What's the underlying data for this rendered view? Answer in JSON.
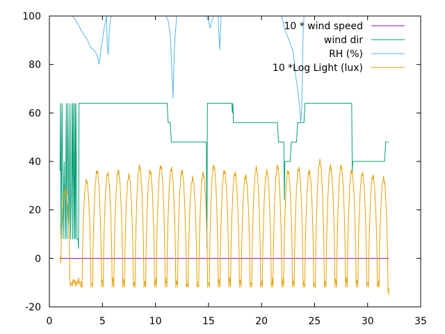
{
  "chart_data": {
    "type": "line",
    "title": "",
    "xlabel": "",
    "ylabel": "",
    "xlim": [
      0,
      35
    ],
    "ylim": [
      -20,
      100
    ],
    "xticks": [
      0,
      5,
      10,
      15,
      20,
      25,
      30,
      35
    ],
    "yticks": [
      -20,
      0,
      20,
      40,
      60,
      80,
      100
    ],
    "grid": false,
    "legend_position": "top-right",
    "series": [
      {
        "name": "10 * wind speed",
        "color": "#9400d3",
        "points": [
          [
            1.0,
            0
          ],
          [
            32.0,
            0
          ]
        ]
      },
      {
        "name": "wind dir",
        "color": "#009e73",
        "points": [
          [
            1.0,
            36
          ],
          [
            1.05,
            64
          ],
          [
            1.1,
            8
          ],
          [
            1.2,
            64
          ],
          [
            1.3,
            8
          ],
          [
            1.4,
            40
          ],
          [
            1.5,
            8
          ],
          [
            1.6,
            64
          ],
          [
            1.65,
            8
          ],
          [
            1.75,
            64
          ],
          [
            1.8,
            36
          ],
          [
            1.85,
            8
          ],
          [
            1.95,
            64
          ],
          [
            2.0,
            8
          ],
          [
            2.1,
            36
          ],
          [
            2.15,
            64
          ],
          [
            2.2,
            8
          ],
          [
            2.25,
            64
          ],
          [
            2.3,
            36
          ],
          [
            2.35,
            8
          ],
          [
            2.4,
            64
          ],
          [
            2.45,
            8
          ],
          [
            2.5,
            64
          ],
          [
            2.6,
            8
          ],
          [
            2.7,
            8
          ],
          [
            2.75,
            4
          ],
          [
            2.8,
            64
          ],
          [
            11.1,
            64
          ],
          [
            11.2,
            56
          ],
          [
            11.4,
            56
          ],
          [
            11.5,
            48
          ],
          [
            14.8,
            48
          ],
          [
            14.85,
            4
          ],
          [
            14.9,
            64
          ],
          [
            17.2,
            64
          ],
          [
            17.25,
            60
          ],
          [
            17.3,
            64
          ],
          [
            17.35,
            56
          ],
          [
            21.5,
            56
          ],
          [
            21.6,
            48
          ],
          [
            22.1,
            48
          ],
          [
            22.15,
            24
          ],
          [
            22.2,
            40
          ],
          [
            22.7,
            40
          ],
          [
            22.8,
            48
          ],
          [
            23.3,
            48
          ],
          [
            23.4,
            56
          ],
          [
            24.0,
            56
          ],
          [
            24.1,
            64
          ],
          [
            28.5,
            64
          ],
          [
            28.55,
            36
          ],
          [
            28.6,
            40
          ],
          [
            31.6,
            40
          ],
          [
            31.7,
            48
          ],
          [
            32.0,
            48
          ]
        ]
      },
      {
        "name": "RH (%)",
        "color": "#56b4e9",
        "points": [
          [
            2.2,
            100
          ],
          [
            2.5,
            98
          ],
          [
            2.8,
            96
          ],
          [
            3.0,
            94
          ],
          [
            3.3,
            92
          ],
          [
            3.6,
            90
          ],
          [
            3.9,
            87
          ],
          [
            4.2,
            86
          ],
          [
            4.5,
            84
          ],
          [
            4.6,
            82
          ],
          [
            4.7,
            80
          ],
          [
            4.85,
            86
          ],
          [
            5.0,
            90
          ],
          [
            5.2,
            96
          ],
          [
            5.4,
            100
          ],
          [
            5.45,
            88
          ],
          [
            5.55,
            84
          ],
          [
            5.65,
            94
          ],
          [
            5.8,
            100
          ],
          [
            11.0,
            100
          ],
          [
            11.2,
            98
          ],
          [
            11.4,
            92
          ],
          [
            11.5,
            82
          ],
          [
            11.6,
            72
          ],
          [
            11.65,
            66
          ],
          [
            11.8,
            88
          ],
          [
            12.0,
            100
          ],
          [
            14.8,
            100
          ],
          [
            15.0,
            98
          ],
          [
            15.15,
            95
          ],
          [
            15.3,
            98
          ],
          [
            15.5,
            100
          ],
          [
            15.9,
            100
          ],
          [
            16.05,
            86
          ],
          [
            16.2,
            100
          ],
          [
            21.9,
            100
          ],
          [
            22.2,
            94
          ],
          [
            22.6,
            90
          ],
          [
            23.0,
            85
          ],
          [
            23.2,
            76
          ],
          [
            23.4,
            70
          ],
          [
            23.6,
            62
          ],
          [
            23.7,
            56
          ],
          [
            23.8,
            62
          ],
          [
            23.9,
            90
          ],
          [
            24.0,
            100
          ]
        ]
      },
      {
        "name": "10 *Log Light (lux)",
        "color": "#e69f00",
        "peaks": [
          [
            1.5,
            28
          ],
          [
            3.5,
            32
          ],
          [
            4.5,
            36
          ],
          [
            5.5,
            35
          ],
          [
            6.5,
            36
          ],
          [
            7.5,
            34
          ],
          [
            8.5,
            38
          ],
          [
            9.5,
            36
          ],
          [
            10.5,
            38
          ],
          [
            11.5,
            37
          ],
          [
            12.5,
            36
          ],
          [
            13.5,
            33
          ],
          [
            14.5,
            35
          ],
          [
            15.5,
            38
          ],
          [
            16.5,
            36
          ],
          [
            17.5,
            35
          ],
          [
            18.5,
            34
          ],
          [
            19.5,
            37
          ],
          [
            20.5,
            36
          ],
          [
            21.5,
            38
          ],
          [
            22.5,
            36
          ],
          [
            23.5,
            37
          ],
          [
            24.5,
            36
          ],
          [
            25.5,
            40
          ],
          [
            26.5,
            38
          ],
          [
            27.5,
            38
          ],
          [
            28.5,
            36
          ],
          [
            29.5,
            35
          ],
          [
            30.5,
            34
          ],
          [
            31.5,
            33
          ]
        ],
        "night_level": -12
      }
    ]
  }
}
